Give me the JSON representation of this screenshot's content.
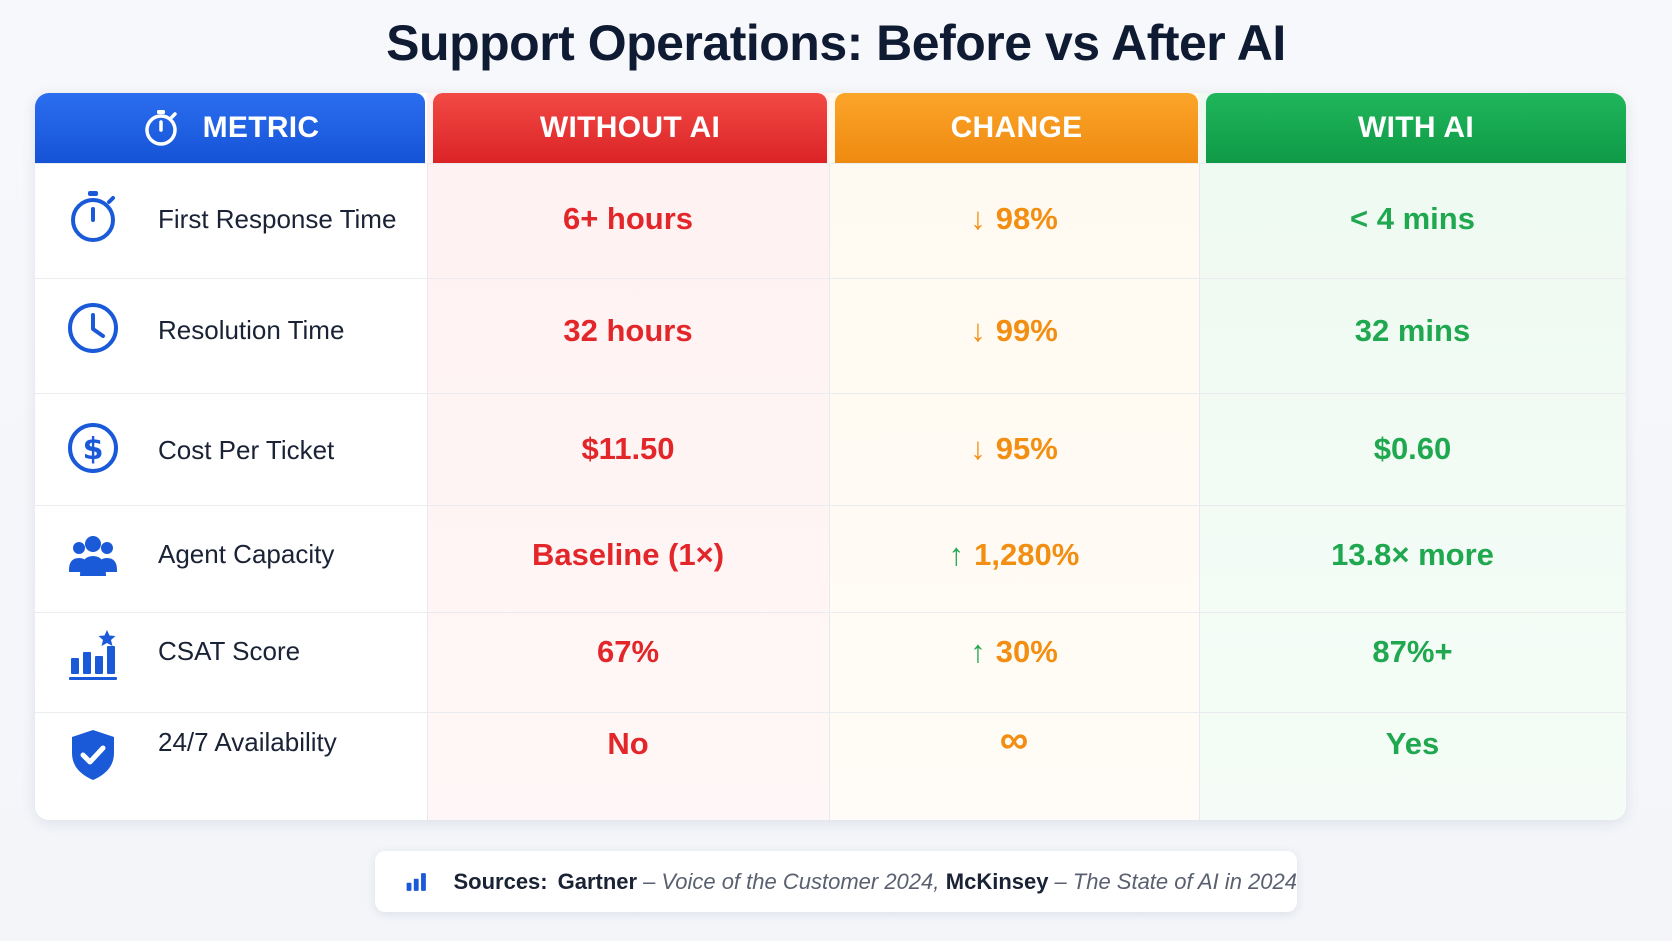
{
  "title": "Support Operations: Before vs After AI",
  "headers": {
    "metric": "METRIC",
    "without": "WITHOUT AI",
    "change": "CHANGE",
    "with": "WITH AI"
  },
  "rows": [
    {
      "metric": "First Response Time",
      "icon": "stopwatch-icon",
      "without": "6+ hours",
      "change_arrow": "↓",
      "change_direction": "down",
      "change": "98%",
      "with": "< 4 mins"
    },
    {
      "metric": "Resolution Time",
      "icon": "clock-icon",
      "without": "32 hours",
      "change_arrow": "↓",
      "change_direction": "down",
      "change": "99%",
      "with": "32 mins"
    },
    {
      "metric": "Cost Per Ticket",
      "icon": "dollar-icon",
      "without": "$11.50",
      "change_arrow": "↓",
      "change_direction": "down",
      "change": "95%",
      "with": "$0.60"
    },
    {
      "metric": "Agent Capacity",
      "icon": "team-icon",
      "without": "Baseline (1×)",
      "change_arrow": "↑",
      "change_direction": "up",
      "change": "1,280%",
      "with": "13.8× more"
    },
    {
      "metric": "CSAT Score",
      "icon": "chart-star-icon",
      "without": "67%",
      "change_arrow": "↑",
      "change_direction": "up",
      "change": "30%",
      "with": "87%+"
    },
    {
      "metric": "24/7 Availability",
      "icon": "shield-check-icon",
      "without": "No",
      "change_arrow": "",
      "change_direction": "none",
      "change": "∞",
      "with": "Yes"
    }
  ],
  "sources": {
    "label": "Sources:",
    "items": [
      {
        "org": "Gartner",
        "separator": "–",
        "publication": "Voice of the Customer 2024,"
      },
      {
        "org": "McKinsey",
        "separator": "–",
        "publication": "The State of AI in 2024"
      }
    ]
  },
  "colors": {
    "metric_header": "#1553d6",
    "without_header": "#db2326",
    "change_header": "#ef8a10",
    "with_header": "#0f9a47",
    "without_text": "#e2262a",
    "change_text": "#f28e12",
    "with_text": "#1fa84f",
    "icon_blue": "#1a5ad8"
  }
}
